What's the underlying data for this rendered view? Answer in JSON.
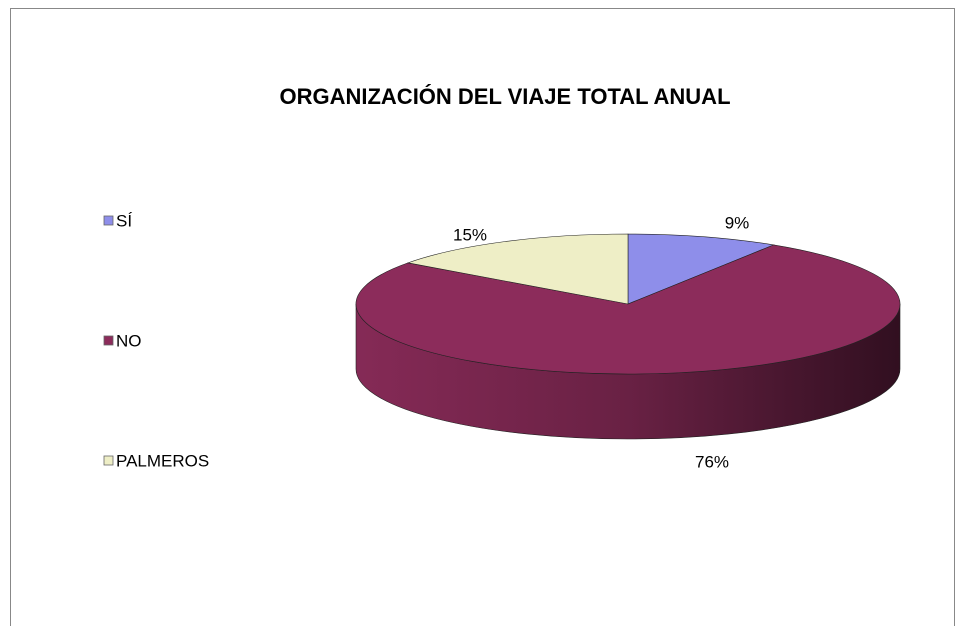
{
  "chart_data": {
    "type": "pie3d",
    "title": "ORGANIZACIÓN DEL VIAJE TOTAL ANUAL",
    "categories": [
      "SÍ",
      "NO",
      "PALMEROS"
    ],
    "values": [
      9,
      76,
      15
    ],
    "value_labels": [
      "9%",
      "76%",
      "15%"
    ],
    "colors": [
      "#8e8eea",
      "#8c2c5b",
      "#eeeec6"
    ],
    "legend": "left"
  }
}
